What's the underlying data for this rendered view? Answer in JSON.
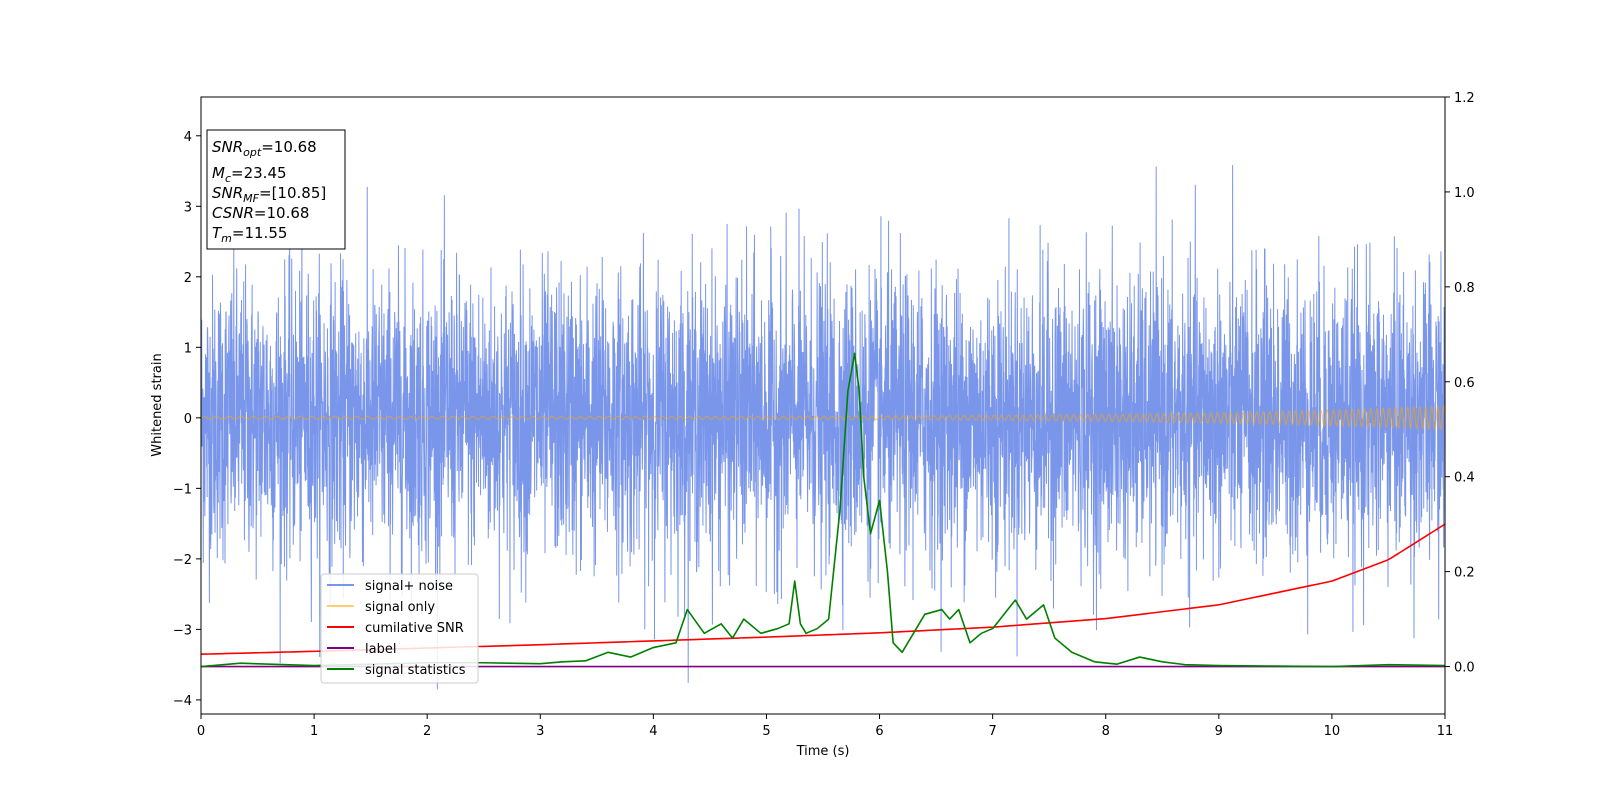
{
  "chart_data": {
    "type": "line",
    "title": "",
    "xlabel": "Time (s)",
    "ylabel": "Whitened strain",
    "y2label": "",
    "xlim": [
      0,
      11
    ],
    "ylim": [
      -4.2,
      4.55
    ],
    "y2lim": [
      -0.1,
      1.2
    ],
    "x_ticks": [
      0,
      1,
      2,
      3,
      4,
      5,
      6,
      7,
      8,
      9,
      10,
      11
    ],
    "y_ticks": [
      -4,
      -3,
      -2,
      -1,
      0,
      1,
      2,
      3,
      4
    ],
    "y2_ticks": [
      "0.0",
      "0.2",
      "0.4",
      "0.6",
      "0.8",
      "1.0",
      "1.2"
    ],
    "grid": false,
    "legend_position": "lower-left",
    "annotation": {
      "lines": [
        {
          "base": "SNR",
          "sub": "opt",
          "value": "=10.68"
        },
        {
          "base": "M",
          "sub": "c",
          "value": "=23.45"
        },
        {
          "base": "SNR",
          "sub": "MF",
          "value": "=[10.85]"
        },
        {
          "base": "CSNR",
          "sub": "",
          "value": "=10.68"
        },
        {
          "base": "T",
          "sub": "m",
          "value": "=11.55"
        }
      ]
    },
    "series": [
      {
        "name": "signal+ noise",
        "axis": "left",
        "color": "#4169e1",
        "description_values": {
          "mean": 0.0,
          "std": 1.0,
          "min": -3.85,
          "max": 4.18,
          "x_start": 0,
          "x_end": 11
        }
      },
      {
        "name": "signal only",
        "axis": "left",
        "color": "#ffa500",
        "chirp_amplitude_start": 0.02,
        "chirp_amplitude_end": 0.17,
        "x": [
          0,
          11
        ]
      },
      {
        "name": "cumilative SNR",
        "axis": "right",
        "color": "#ff0000",
        "x": [
          0,
          1,
          2,
          3,
          4,
          5,
          6,
          7,
          8,
          9,
          10,
          10.5,
          11
        ],
        "values": [
          0.026,
          0.032,
          0.039,
          0.046,
          0.054,
          0.062,
          0.071,
          0.083,
          0.101,
          0.13,
          0.18,
          0.225,
          0.3
        ]
      },
      {
        "name": "label",
        "axis": "right",
        "color": "#800080",
        "x": [
          0,
          11
        ],
        "values": [
          0.0,
          0.0
        ]
      },
      {
        "name": "signal statistics",
        "axis": "right",
        "color": "#008000",
        "x": [
          0,
          0.35,
          1.0,
          1.5,
          2.0,
          2.5,
          3.0,
          3.2,
          3.4,
          3.6,
          3.8,
          4.0,
          4.2,
          4.3,
          4.45,
          4.6,
          4.7,
          4.8,
          4.95,
          5.1,
          5.2,
          5.25,
          5.3,
          5.35,
          5.45,
          5.55,
          5.65,
          5.72,
          5.78,
          5.82,
          5.86,
          5.92,
          6.0,
          6.07,
          6.12,
          6.2,
          6.3,
          6.4,
          6.55,
          6.62,
          6.7,
          6.8,
          6.9,
          7.0,
          7.1,
          7.2,
          7.3,
          7.45,
          7.55,
          7.7,
          7.9,
          8.1,
          8.3,
          8.5,
          8.7,
          9.0,
          9.5,
          10.0,
          10.5,
          11.0
        ],
        "values": [
          0.0,
          0.007,
          0.002,
          0.005,
          0.008,
          0.008,
          0.006,
          0.01,
          0.012,
          0.03,
          0.02,
          0.04,
          0.05,
          0.12,
          0.07,
          0.09,
          0.06,
          0.1,
          0.07,
          0.08,
          0.09,
          0.18,
          0.09,
          0.07,
          0.08,
          0.1,
          0.33,
          0.58,
          0.66,
          0.58,
          0.4,
          0.28,
          0.35,
          0.2,
          0.05,
          0.03,
          0.07,
          0.11,
          0.12,
          0.1,
          0.12,
          0.05,
          0.07,
          0.08,
          0.11,
          0.14,
          0.1,
          0.13,
          0.06,
          0.03,
          0.01,
          0.005,
          0.02,
          0.01,
          0.004,
          0.002,
          0.001,
          0.0,
          0.004,
          0.002
        ]
      }
    ]
  }
}
